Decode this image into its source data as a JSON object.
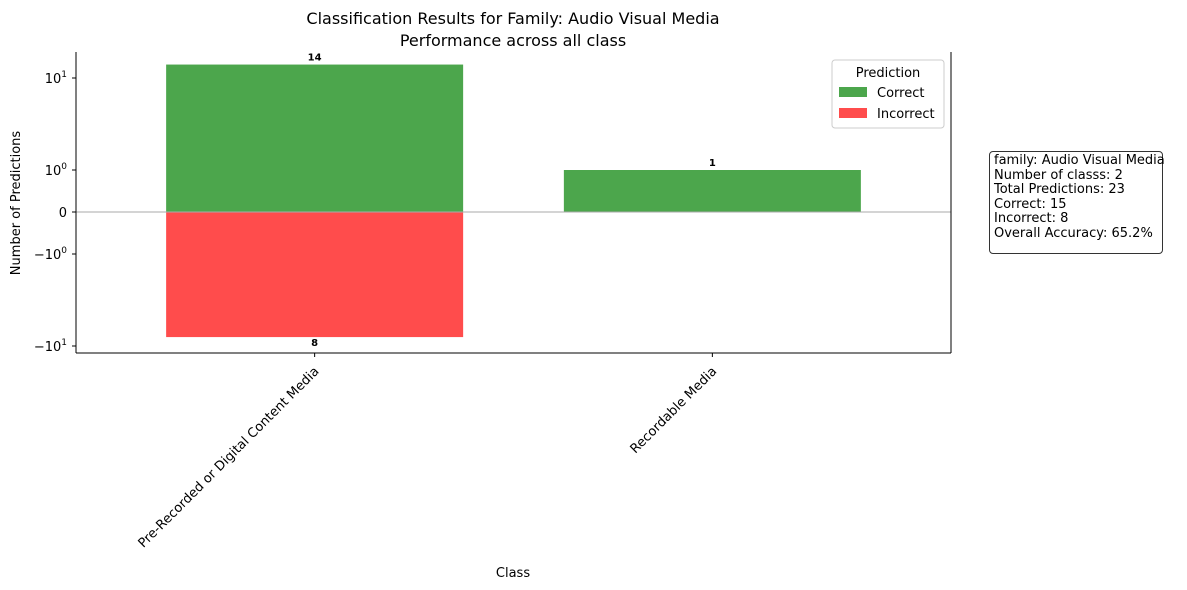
{
  "chart_data": {
    "type": "bar",
    "title": "Classification Results for Family: Audio Visual Media",
    "subtitle": "Performance across all class",
    "xlabel": "Class",
    "ylabel": "Number of Predictions",
    "yscale": "symlog",
    "categories": [
      "Pre-Recorded or Digital Content Media",
      "Recordable Media"
    ],
    "series": [
      {
        "name": "Correct",
        "color": "#4ca64c",
        "values": [
          14,
          1
        ],
        "labels": [
          "14",
          "1"
        ]
      },
      {
        "name": "Incorrect",
        "color": "#ff4c4c",
        "values": [
          -8,
          0
        ],
        "labels": [
          "8",
          ""
        ]
      }
    ],
    "yticks": [
      {
        "value": 10,
        "base": "10",
        "exp": "1"
      },
      {
        "value": 1,
        "base": "10",
        "exp": "0"
      },
      {
        "value": 0,
        "base": "0",
        "exp": ""
      },
      {
        "value": -1,
        "base": "−10",
        "exp": "0"
      },
      {
        "value": -10,
        "base": "−10",
        "exp": "1"
      }
    ],
    "legend": {
      "title": "Prediction",
      "placement": "top-right"
    },
    "zero_line": true
  },
  "stats": {
    "family": "family: Audio Visual Media",
    "num_classes": "Number of classs: 2",
    "total": "Total Predictions: 23",
    "correct": "Correct: 15",
    "incorrect": "Incorrect: 8",
    "accuracy": "Overall Accuracy: 65.2%"
  }
}
